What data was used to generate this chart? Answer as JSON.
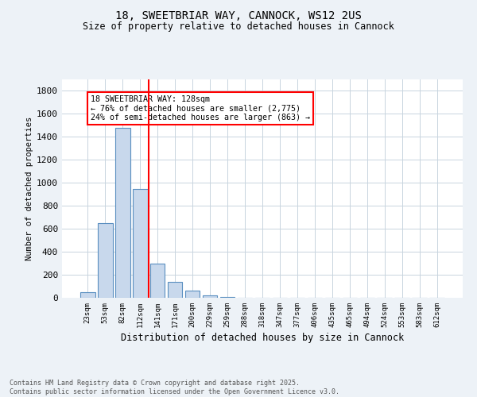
{
  "title_line1": "18, SWEETBRIAR WAY, CANNOCK, WS12 2US",
  "title_line2": "Size of property relative to detached houses in Cannock",
  "xlabel": "Distribution of detached houses by size in Cannock",
  "ylabel": "Number of detached properties",
  "categories": [
    "23sqm",
    "53sqm",
    "82sqm",
    "112sqm",
    "141sqm",
    "171sqm",
    "200sqm",
    "229sqm",
    "259sqm",
    "288sqm",
    "318sqm",
    "347sqm",
    "377sqm",
    "406sqm",
    "435sqm",
    "465sqm",
    "494sqm",
    "524sqm",
    "553sqm",
    "583sqm",
    "612sqm"
  ],
  "values": [
    45,
    650,
    1480,
    950,
    300,
    140,
    60,
    18,
    4,
    2,
    1,
    1,
    0,
    0,
    0,
    0,
    0,
    0,
    0,
    0,
    0
  ],
  "bar_color": "#c8d8ec",
  "bar_edge_color": "#5a8fc0",
  "grid_color": "#c8d4de",
  "vline_color": "red",
  "annotation_text": "18 SWEETBRIAR WAY: 128sqm\n← 76% of detached houses are smaller (2,775)\n24% of semi-detached houses are larger (863) →",
  "ylim": [
    0,
    1900
  ],
  "yticks": [
    0,
    200,
    400,
    600,
    800,
    1000,
    1200,
    1400,
    1600,
    1800
  ],
  "footnote": "Contains HM Land Registry data © Crown copyright and database right 2025.\nContains public sector information licensed under the Open Government Licence v3.0.",
  "bg_color": "#edf2f7",
  "plot_bg_color": "#ffffff"
}
